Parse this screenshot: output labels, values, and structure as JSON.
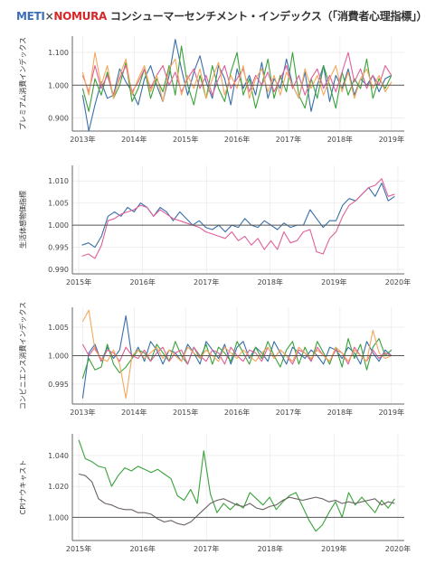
{
  "title": {
    "meti": "METI",
    "x": "×",
    "nomura": "NOMURA",
    "rest": " コンシューマーセンチメント・インデックス（「消費者心理指標」）"
  },
  "colors": {
    "blue": "#3a6fa8",
    "green": "#3aa23a",
    "pink": "#e0609a",
    "orange": "#f5a85a",
    "gray": "#6b6262",
    "reference_line": "#555555"
  },
  "chart_data": [
    {
      "type": "line",
      "ylabel": "プレミアム消費インデックス",
      "ylim": [
        0.86,
        1.15
      ],
      "yticks": [
        0.9,
        1.0,
        1.1
      ],
      "ytick_labels": [
        "0.900",
        "1.000",
        "1.100"
      ],
      "xlim": [
        2012.8,
        2019.25
      ],
      "xticks": [
        2013,
        2014,
        2015,
        2016,
        2017,
        2018,
        2019
      ],
      "xtick_labels": [
        "2013年",
        "2014年",
        "2015年",
        "2016年",
        "2017年",
        "2018年",
        "2019年"
      ],
      "reference_y": 1.0,
      "series": [
        {
          "color": "#3a6fa8",
          "x_start": 2013.0,
          "x_end": 2019.0,
          "values": [
            0.97,
            0.86,
            0.94,
            1.01,
            0.96,
            0.97,
            1.05,
            1.01,
            0.98,
            0.94,
            1.02,
            1.06,
            1.0,
            0.95,
            1.03,
            1.14,
            1.05,
            0.97,
            1.04,
            1.09,
            1.01,
            0.96,
            1.06,
            1.02,
            0.94,
            1.05,
            0.99,
            1.03,
            0.97,
            1.07,
            0.96,
            1.02,
            0.99,
            1.08,
            1.0,
            0.96,
            1.04,
            0.92,
            1.0,
            1.06,
            0.95,
            1.03,
            0.99,
            1.05,
            0.97,
            1.02,
            1.0,
            1.03,
            0.98,
            1.02,
            1.03
          ]
        },
        {
          "color": "#3aa23a",
          "x_start": 2013.0,
          "x_end": 2019.0,
          "values": [
            0.99,
            0.92,
            1.02,
            0.97,
            1.04,
            0.96,
            1.0,
            1.07,
            0.95,
            0.99,
            1.05,
            0.96,
            1.02,
            0.98,
            1.06,
            0.97,
            1.12,
            1.0,
            0.94,
            1.03,
            0.96,
            1.06,
            0.99,
            0.95,
            1.04,
            1.1,
            0.97,
            1.02,
            0.93,
            1.0,
            1.08,
            0.96,
            1.03,
            0.98,
            1.1,
            0.97,
            0.93,
            1.02,
            0.96,
            1.06,
            1.0,
            0.93,
            1.04,
            0.97,
            1.02,
            0.99,
            1.08,
            0.96,
            1.02,
            0.99,
            1.03
          ]
        },
        {
          "color": "#e0609a",
          "x_start": 2013.0,
          "x_end": 2019.0,
          "values": [
            1.03,
            0.98,
            1.06,
            0.99,
            1.03,
            0.97,
            1.02,
            1.06,
            0.98,
            1.01,
            1.05,
            0.99,
            1.03,
            1.06,
            1.0,
            1.04,
            0.98,
            1.02,
            1.05,
            0.99,
            1.03,
            0.97,
            1.02,
            1.06,
            0.99,
            1.02,
            1.05,
            0.98,
            1.03,
            1.0,
            1.04,
            0.98,
            1.02,
            1.06,
            0.99,
            1.03,
            0.97,
            1.02,
            1.05,
            0.99,
            1.03,
            0.98,
            1.04,
            1.1,
            1.01,
            1.05,
            0.99,
            1.03,
            1.0,
            1.06,
            1.03
          ]
        },
        {
          "color": "#f5a85a",
          "x_start": 2013.0,
          "x_end": 2019.0,
          "values": [
            1.04,
            0.97,
            1.1,
            1.0,
            1.06,
            0.96,
            1.03,
            1.08,
            0.97,
            1.02,
            1.06,
            0.98,
            1.03,
            0.95,
            1.05,
            1.08,
            0.97,
            1.03,
            0.99,
            1.05,
            0.96,
            1.02,
            1.07,
            0.97,
            1.03,
            0.99,
            1.06,
            0.96,
            1.02,
            1.05,
            0.98,
            1.03,
            0.97,
            1.04,
            1.0,
            0.96,
            1.05,
            0.99,
            1.03,
            0.97,
            1.02,
            1.06,
            0.98,
            1.04,
            0.96,
            1.02,
            1.05,
            0.99,
            1.03,
            0.98,
            1.01
          ]
        }
      ]
    },
    {
      "type": "line",
      "ylabel": "生活体感物価指標",
      "ylim": [
        0.989,
        1.0135
      ],
      "yticks": [
        0.99,
        0.995,
        1.0,
        1.005,
        1.01
      ],
      "ytick_labels": [
        "0.990",
        "0.995",
        "1.000",
        "1.005",
        "1.010"
      ],
      "xlim": [
        2014.9,
        2020.1
      ],
      "xticks": [
        2015,
        2016,
        2017,
        2018,
        2019,
        2020
      ],
      "xtick_labels": [
        "2015年",
        "2016年",
        "2017年",
        "2018年",
        "2019年",
        "2020年"
      ],
      "reference_y": 1.0,
      "series": [
        {
          "color": "#3a6fa8",
          "x_start": 2015.05,
          "x_end": 2019.95,
          "values": [
            0.9955,
            0.996,
            0.995,
            0.9975,
            1.002,
            1.003,
            1.002,
            1.004,
            1.003,
            1.005,
            1.004,
            1.002,
            1.004,
            1.003,
            1.001,
            1.003,
            1.0015,
            1.0,
            1.001,
            0.9995,
            0.999,
            1.0,
            0.9985,
            1.0,
            0.9995,
            1.0015,
            1.0,
            0.9995,
            1.001,
            1.0,
            0.999,
            1.0005,
            0.9995,
            1.0,
            1.0,
            1.0035,
            1.0015,
            0.9995,
            1.001,
            1.001,
            1.0045,
            1.006,
            1.0055,
            1.007,
            1.0085,
            1.0065,
            1.0095,
            1.0055,
            1.0065
          ]
        },
        {
          "color": "#e0609a",
          "x_start": 2015.05,
          "x_end": 2019.95,
          "values": [
            0.993,
            0.9935,
            0.9925,
            0.9955,
            1.001,
            1.0015,
            1.0025,
            1.003,
            1.0035,
            1.0045,
            1.004,
            1.002,
            1.0035,
            1.0025,
            1.0015,
            1.001,
            1.0005,
            1.0,
            0.9995,
            0.9985,
            0.998,
            0.9975,
            0.997,
            0.9985,
            0.9965,
            0.9975,
            0.9955,
            0.997,
            0.9945,
            0.9965,
            0.9945,
            0.9985,
            0.996,
            0.9965,
            0.9985,
            0.999,
            0.994,
            0.9935,
            0.997,
            0.9985,
            1.002,
            1.0045,
            1.0055,
            1.007,
            1.0085,
            1.009,
            1.0105,
            1.0065,
            1.007
          ]
        }
      ]
    },
    {
      "type": "line",
      "ylabel": "コンビニエンス消費インデックス",
      "ylim": [
        0.9915,
        1.0085
      ],
      "yticks": [
        0.995,
        1.0,
        1.005
      ],
      "ytick_labels": [
        "0.995",
        "1.000",
        "1.005"
      ],
      "xlim": [
        2012.8,
        2019.25
      ],
      "xticks": [
        2013,
        2014,
        2015,
        2016,
        2017,
        2018,
        2019
      ],
      "xtick_labels": [
        "2013年",
        "2014年",
        "2015年",
        "2016年",
        "2017年",
        "2018年",
        "2019年"
      ],
      "reference_y": 1.0,
      "series": [
        {
          "color": "#3a6fa8",
          "x_start": 2013.0,
          "x_end": 2019.0,
          "values": [
            0.9925,
            1.0005,
            1.002,
            0.999,
            1.0015,
            0.9995,
            1.001,
            1.007,
            0.9995,
            1.0015,
            0.999,
            1.0025,
            1.001,
            0.9985,
            1.001,
            1.0005,
            0.999,
            1.002,
            1.0005,
            0.9985,
            1.0025,
            1.001,
            0.9995,
            1.002,
            0.9985,
            1.0015,
            1.0025,
            0.9995,
            1.0015,
            1.0005,
            0.999,
            1.0025,
            1.0005,
            0.9985,
            1.0015,
            1.0005,
            0.9995,
            1.001,
            1.0,
            0.9985,
            1.0015,
            1.001,
            0.9995,
            1.0015,
            1.0005,
            0.9985,
            1.0025,
            1.0005,
            0.999,
            1.001,
            1.0
          ]
        },
        {
          "color": "#3aa23a",
          "x_start": 2013.0,
          "x_end": 2019.0,
          "values": [
            0.996,
            0.9995,
            0.9975,
            0.998,
            1.002,
            0.9985,
            0.997,
            0.998,
            0.9995,
            1.001,
            1.0005,
            0.999,
            1.002,
            1.0005,
            0.999,
            1.0025,
            1.0,
            0.9985,
            1.0015,
            0.9995,
            1.002,
            0.9985,
            1.0015,
            1.0005,
            0.999,
            1.0025,
            1.0005,
            0.9985,
            1.0015,
            0.9995,
            1.0025,
            1.0,
            0.998,
            1.001,
            1.0025,
            0.9985,
            1.0015,
            0.999,
            1.0025,
            1.0005,
            0.9985,
            1.0015,
            0.998,
            1.003,
            0.9995,
            1.002,
            0.9975,
            1.0015,
            1.003,
            1.0,
            1.001
          ]
        },
        {
          "color": "#e0609a",
          "x_start": 2013.0,
          "x_end": 2019.0,
          "values": [
            1.002,
            1.0,
            1.0015,
            0.999,
            1.001,
            1.0005,
            0.999,
            1.0015,
            1.0,
            0.9995,
            1.001,
            0.999,
            1.0005,
            1.0015,
            0.999,
            1.0005,
            1.001,
            0.9985,
            1.0015,
            1.0,
            0.999,
            1.001,
            1.0005,
            0.9985,
            1.0015,
            1.0,
            0.999,
            1.001,
            1.0005,
            0.999,
            1.0015,
            0.9995,
            1.001,
            1.0,
            0.9985,
            1.001,
            1.0005,
            0.999,
            1.0015,
            1.0,
            0.999,
            1.001,
            1.0005,
            0.9985,
            1.0015,
            1.0,
            0.999,
            1.001,
            0.9995,
            1.0005,
            1.0
          ]
        },
        {
          "color": "#f5a85a",
          "x_start": 2013.0,
          "x_end": 2019.0,
          "values": [
            1.006,
            1.008,
            1.001,
            0.9995,
            0.999,
            1.001,
            0.9985,
            0.9925,
            1.0,
            1.001,
            0.9995,
            1.0005,
            1.0015,
            0.9995,
            1.001,
            1.0,
            0.999,
            1.0015,
            1.0005,
            0.9995,
            1.001,
            1.0,
            0.999,
            1.0015,
            1.0005,
            0.9995,
            1.001,
            1.0,
            0.999,
            1.0005,
            1.0015,
            0.9995,
            1.001,
            1.0,
            0.999,
            1.0015,
            1.0005,
            0.9995,
            1.001,
            1.0,
            0.999,
            1.0015,
            1.0005,
            0.999,
            1.001,
            1.0,
            0.999,
            1.0045,
            1.0005,
            0.9995,
            1.0
          ]
        }
      ]
    },
    {
      "type": "line",
      "ylabel": "CPIナウキャスト",
      "ylim": [
        0.985,
        1.054
      ],
      "yticks": [
        1.0,
        1.02,
        1.04
      ],
      "ytick_labels": [
        "1.000",
        "1.020",
        "1.040"
      ],
      "xlim": [
        2014.9,
        2020.1
      ],
      "xticks": [
        2015,
        2016,
        2017,
        2018,
        2019,
        2020
      ],
      "xtick_labels": [
        "2015年",
        "2016年",
        "2017年",
        "2018年",
        "2019年",
        "2020年"
      ],
      "reference_y": 1.0,
      "series": [
        {
          "color": "#3aa23a",
          "x_start": 2015.0,
          "x_end": 2019.95,
          "values": [
            1.05,
            1.038,
            1.036,
            1.033,
            1.032,
            1.02,
            1.027,
            1.032,
            1.03,
            1.033,
            1.031,
            1.029,
            1.031,
            1.028,
            1.025,
            1.014,
            1.011,
            1.018,
            1.009,
            1.043,
            1.015,
            1.003,
            1.009,
            1.005,
            1.009,
            1.006,
            1.016,
            1.012,
            1.008,
            1.013,
            1.005,
            1.01,
            1.014,
            1.016,
            1.007,
            0.998,
            0.991,
            0.995,
            1.003,
            1.01,
            1.0,
            1.016,
            1.008,
            1.013,
            1.008,
            1.003,
            1.011,
            1.006,
            1.012
          ]
        },
        {
          "color": "#6b6262",
          "x_start": 2015.0,
          "x_end": 2019.95,
          "values": [
            1.028,
            1.027,
            1.023,
            1.012,
            1.009,
            1.008,
            1.006,
            1.005,
            1.005,
            1.003,
            1.003,
            1.002,
            0.999,
            0.997,
            0.998,
            0.996,
            0.995,
            0.997,
            1.001,
            1.005,
            1.009,
            1.011,
            1.012,
            1.01,
            1.008,
            1.007,
            1.009,
            1.006,
            1.005,
            1.007,
            1.008,
            1.011,
            1.013,
            1.012,
            1.011,
            1.012,
            1.013,
            1.012,
            1.01,
            1.011,
            1.009,
            1.01,
            1.009,
            1.01,
            1.011,
            1.012,
            1.008,
            1.01,
            1.009
          ]
        }
      ]
    }
  ]
}
